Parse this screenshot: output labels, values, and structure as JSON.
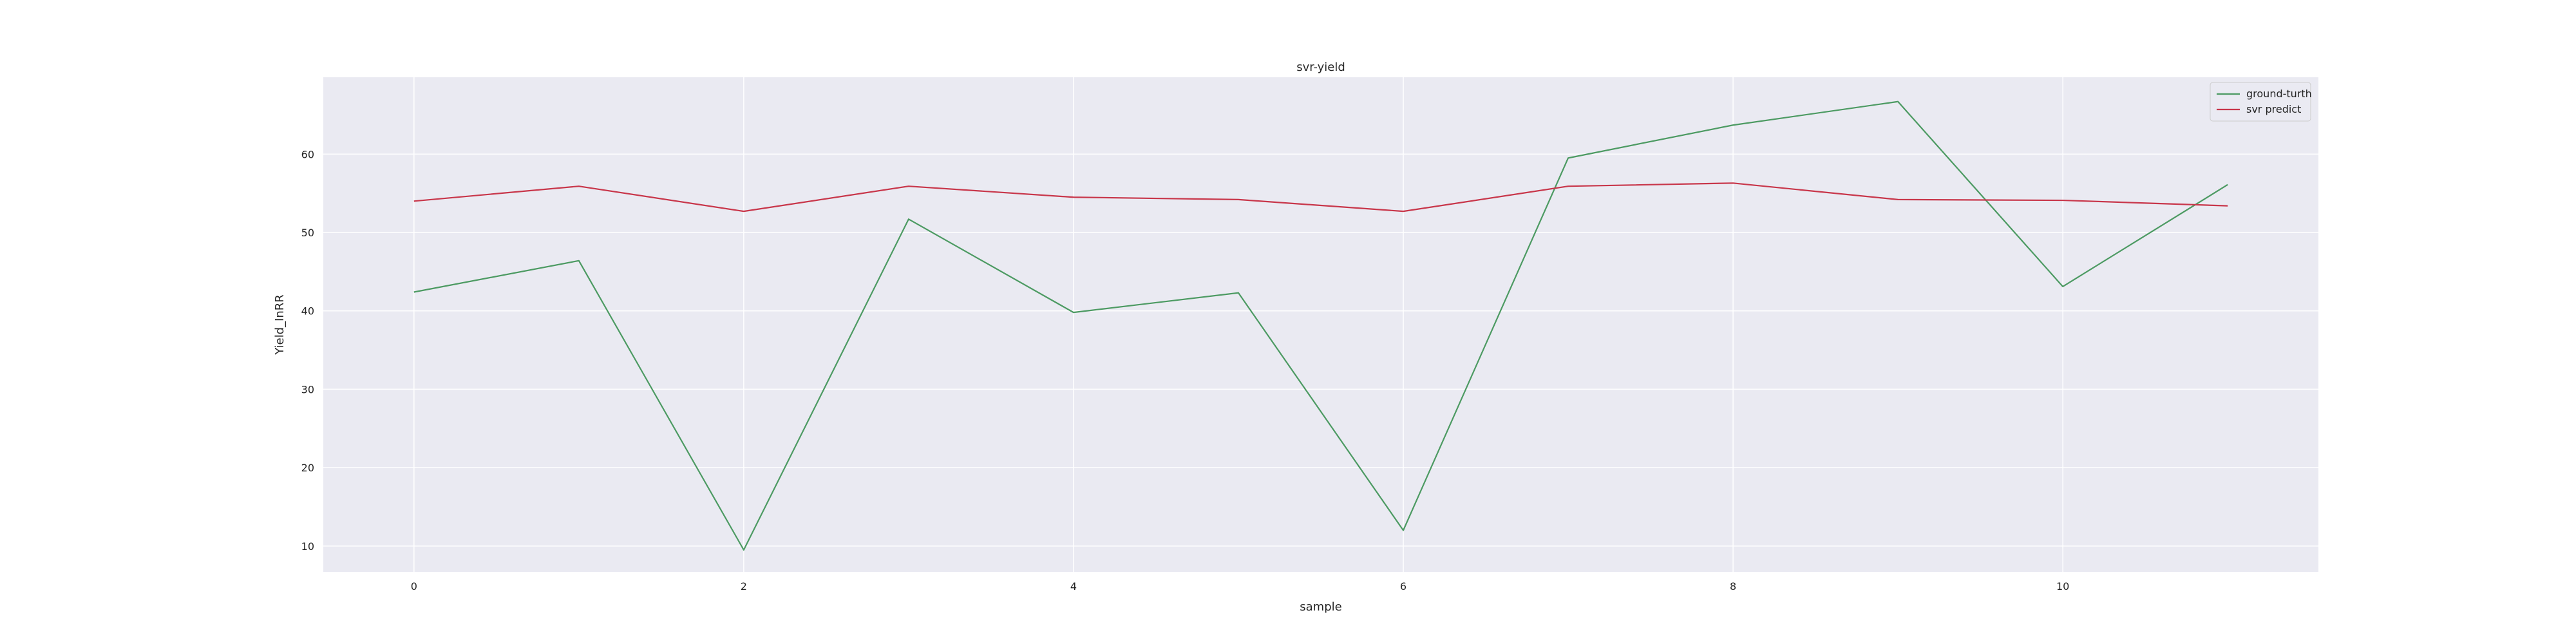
{
  "chart_data": {
    "type": "line",
    "title": "svr-yield",
    "xlabel": "sample",
    "ylabel": "Yield_InRR",
    "x": [
      0,
      1,
      2,
      3,
      4,
      5,
      6,
      7,
      8,
      9,
      10,
      11
    ],
    "xticks": [
      0,
      2,
      4,
      6,
      8,
      10
    ],
    "xlim": [
      -0.55,
      11.55
    ],
    "yticks": [
      10,
      20,
      30,
      40,
      50,
      60
    ],
    "ylim": [
      6.7,
      69.8
    ],
    "grid": true,
    "legend_position": "top-right",
    "series": [
      {
        "name": "ground-turth",
        "color": "#4c9a62",
        "values": [
          42.4,
          46.4,
          9.5,
          51.7,
          39.8,
          42.3,
          12.0,
          59.5,
          63.7,
          66.7,
          43.1,
          56.1
        ]
      },
      {
        "name": "svr predict",
        "color": "#c8364a",
        "values": [
          54.0,
          55.9,
          52.7,
          55.9,
          54.5,
          54.2,
          52.7,
          55.9,
          56.3,
          54.2,
          54.1,
          53.4
        ]
      }
    ]
  },
  "colors": {
    "plot_background": "#eaeaf2",
    "grid": "#ffffff",
    "text": "#262626"
  }
}
